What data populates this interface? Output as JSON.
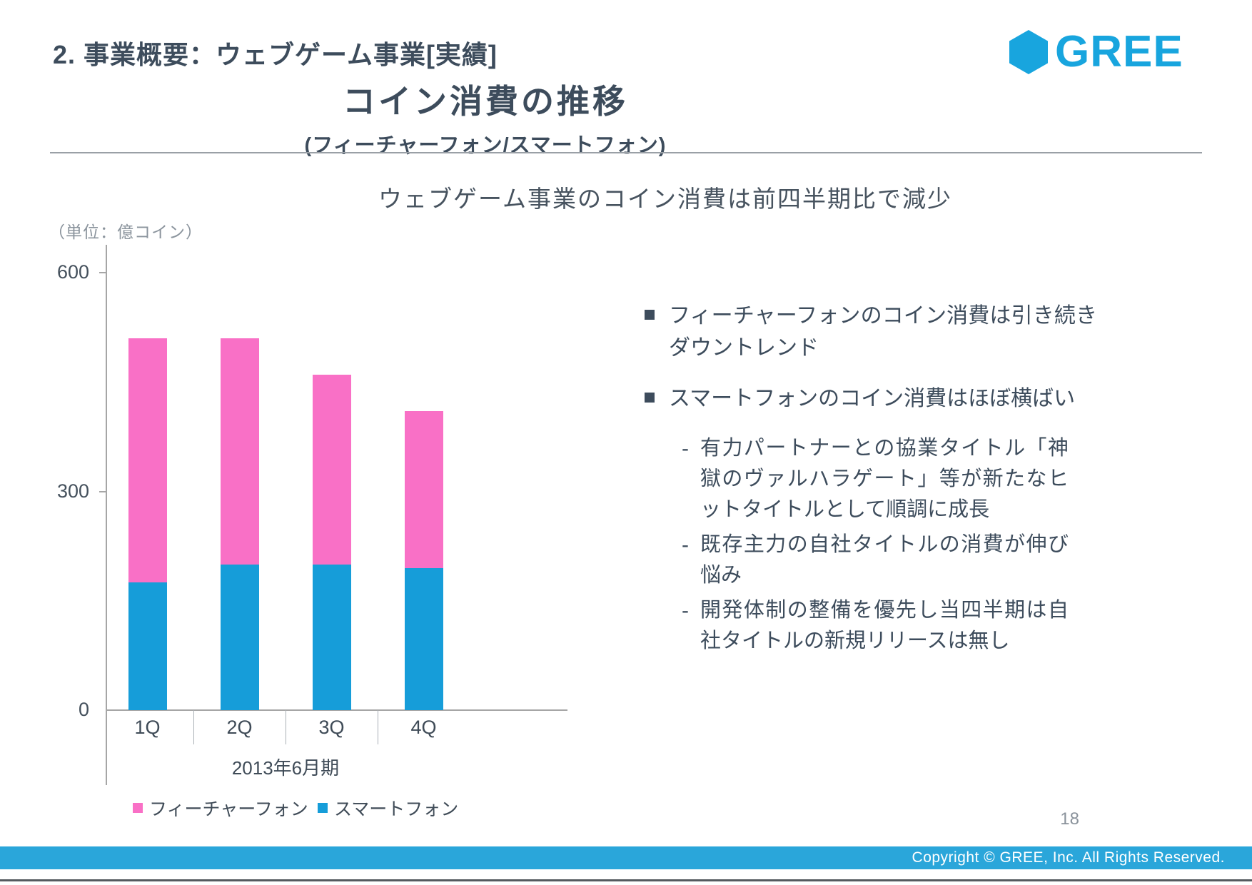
{
  "page": {
    "header_title": "2. 事業概要：ウェブゲーム事業[実績]",
    "logo_text": "GREE",
    "title": "コイン消費の推移",
    "subtitle": "(フィーチャーフォン/スマートフォン)",
    "statement": "ウェブゲーム事業のコイン消費は前四半期比で減少",
    "unit_label": "（単位：億コイン）",
    "page_number": "18",
    "footer_text": "Copyright © GREE, Inc. All Rights Reserved."
  },
  "colors": {
    "feature_phone_pink": "#f970c6",
    "smartphone_blue": "#169dd9",
    "brand_blue": "#18a5de",
    "footer_blue": "#2aa6da",
    "text_slate": "#3d4c5c"
  },
  "chart_data": {
    "type": "bar",
    "stacked": true,
    "title": "コイン消費の推移（フィーチャーフォン/スマートフォン）",
    "unit": "億コイン",
    "categories": [
      "1Q",
      "2Q",
      "3Q",
      "4Q"
    ],
    "x_group_label": "2013年6月期",
    "series": [
      {
        "name": "スマートフォン",
        "color": "#169dd9",
        "values": [
          175,
          200,
          200,
          195
        ]
      },
      {
        "name": "フィーチャーフォン",
        "color": "#f970c6",
        "values": [
          335,
          310,
          260,
          215
        ]
      }
    ],
    "totals": [
      510,
      510,
      460,
      410
    ],
    "y_ticks": [
      0,
      300,
      600
    ],
    "ylim": [
      0,
      600
    ],
    "grid": false,
    "legend_position": "bottom",
    "legend": [
      {
        "label": "フィーチャーフォン",
        "color": "#f970c6"
      },
      {
        "label": "スマートフォン",
        "color": "#169dd9"
      }
    ]
  },
  "bullets": [
    {
      "text": "フィーチャーフォンのコイン消費は引き続きダウントレンド",
      "sub": []
    },
    {
      "text": "スマートフォンのコイン消費はほぼ横ばい",
      "sub": [
        "有力パートナーとの協業タイトル「神獄のヴァルハラゲート」等が新たなヒットタイトルとして順調に成長",
        "既存主力の自社タイトルの消費が伸び悩み",
        "開発体制の整備を優先し当四半期は自社タイトルの新規リリースは無し"
      ]
    }
  ]
}
